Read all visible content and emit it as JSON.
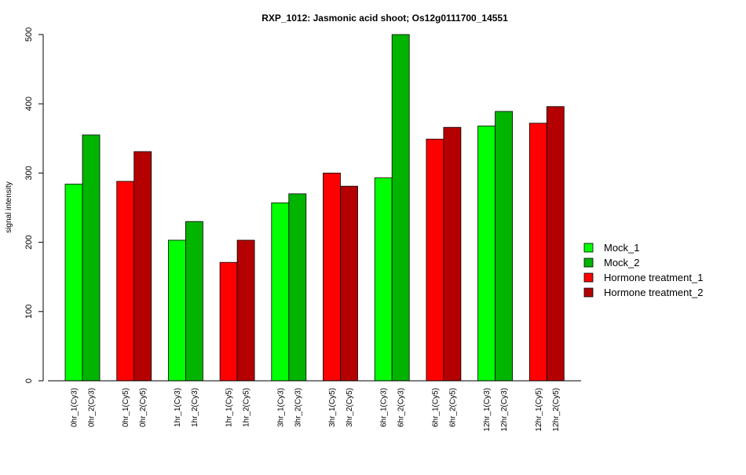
{
  "chart_data": {
    "type": "bar",
    "title": "RXP_1012: Jasmonic acid shoot; Os12g0111700_14551",
    "xlabel": "",
    "ylabel": "signal intensity",
    "ylim": [
      0,
      500
    ],
    "yticks": [
      0,
      100,
      200,
      300,
      400,
      500
    ],
    "grid": false,
    "legend_position": "right",
    "categories": [
      "0hr_1(Cy3)",
      "0hr_2(Cy3)",
      "0hr_1(Cy5)",
      "0hr_2(Cy5)",
      "1hr_1(Cy3)",
      "1hr_2(Cy3)",
      "1hr_1(Cy5)",
      "1hr_2(Cy5)",
      "3hr_1(Cy3)",
      "3hr_2(Cy3)",
      "3hr_1(Cy5)",
      "3hr_2(Cy5)",
      "6hr_1(Cy3)",
      "6hr_2(Cy3)",
      "6hr_1(Cy5)",
      "6hr_2(Cy5)",
      "12hr_1(Cy3)",
      "12hr_2(Cy3)",
      "12hr_1(Cy5)",
      "12hr_2(Cy5)"
    ],
    "values": [
      284,
      355,
      288,
      331,
      203,
      230,
      171,
      203,
      257,
      270,
      300,
      281,
      293,
      500,
      349,
      366,
      368,
      389,
      372,
      396
    ],
    "bar_series": [
      0,
      1,
      2,
      3,
      0,
      1,
      2,
      3,
      0,
      1,
      2,
      3,
      0,
      1,
      2,
      3,
      0,
      1,
      2,
      3
    ],
    "legend": [
      {
        "name": "Mock_1",
        "color": "#00ff00"
      },
      {
        "name": "Mock_2",
        "color": "#00b400"
      },
      {
        "name": "Hormone treatment_1",
        "color": "#ff0000"
      },
      {
        "name": "Hormone treatment_2",
        "color": "#b40000"
      }
    ]
  }
}
